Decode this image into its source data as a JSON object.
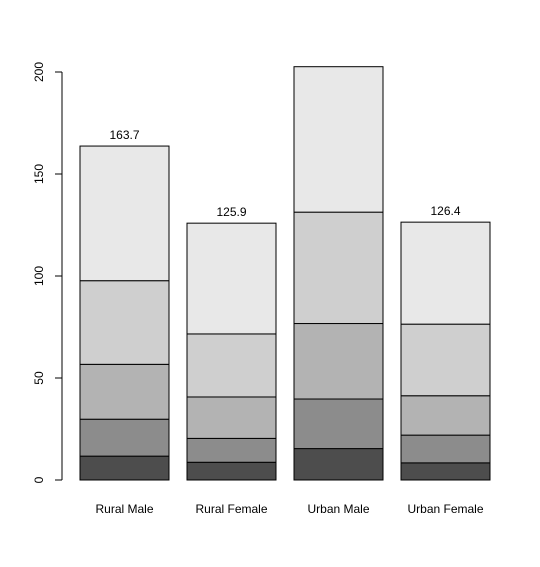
{
  "chart_data": {
    "type": "bar",
    "stacked": true,
    "categories": [
      "Rural Male",
      "Rural Female",
      "Urban Male",
      "Urban Female"
    ],
    "cumulative_labels": [
      [
        "11.7",
        "29.8",
        "56.7",
        "97.7",
        "163.7"
      ],
      [
        "8.7",
        "20.4",
        "40.7",
        "71.6",
        "125.9"
      ],
      [
        "15.4",
        "39.7",
        "76.7",
        "131.3",
        "202.6"
      ],
      [
        "8.4",
        "22",
        "41.3",
        "76.4",
        "126.4"
      ]
    ],
    "series": [
      {
        "values": [
          11.7,
          8.7,
          15.4,
          8.4
        ]
      },
      {
        "values": [
          18.1,
          11.7,
          24.3,
          13.6
        ]
      },
      {
        "values": [
          26.9,
          20.3,
          37.0,
          19.3
        ]
      },
      {
        "values": [
          41.0,
          30.9,
          54.6,
          35.1
        ]
      },
      {
        "values": [
          66.0,
          54.3,
          71.3,
          50.0
        ]
      }
    ],
    "colors": [
      "#4d4d4d",
      "#8c8c8c",
      "#b3b3b3",
      "#cfcfcf",
      "#e8e8e8"
    ],
    "yticks": [
      "0",
      "50",
      "100",
      "150",
      "200"
    ],
    "ylim": [
      0,
      200
    ],
    "grid": false,
    "legend": "none",
    "title": "",
    "xlabel": "",
    "ylabel": ""
  }
}
